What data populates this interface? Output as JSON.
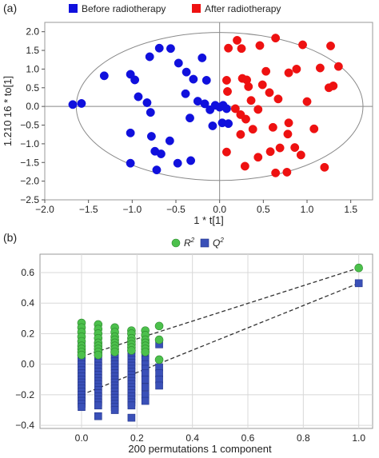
{
  "panels": {
    "a": "(a)",
    "b": "(b)"
  },
  "colors": {
    "before": "#1010dd",
    "after": "#ee1111",
    "r2": "#4cc04c",
    "q2": "#3a50b8",
    "grid": "#d8d8d8",
    "axis_bg": "#ffffff",
    "frame": "#999999"
  },
  "chart_data": [
    {
      "type": "scatter",
      "panel": "a",
      "xlabel": "1 * t[1]",
      "ylabel": "1.210 16 * to[1]",
      "xlim": [
        -2.0,
        1.75
      ],
      "ylim": [
        -2.5,
        2.25
      ],
      "xticks": [
        -2.0,
        -1.5,
        -1.0,
        -0.5,
        0.0,
        0.5,
        1.0,
        1.5
      ],
      "xtick_labels": [
        "−2.0",
        "−1.5",
        "−1.0",
        "−0.5",
        "0.0",
        "0.5",
        "1.0",
        "1.5"
      ],
      "yticks": [
        2.0,
        1.5,
        1.0,
        0.5,
        0.0,
        -0.5,
        -1.0,
        -1.5,
        -2.0,
        -2.5
      ],
      "ytick_labels": [
        "2.0",
        "1.5",
        "1.0",
        "0.5",
        "0.0",
        "−0.5",
        "−1.0",
        "−1.5",
        "−2.0",
        "−2.5"
      ],
      "grid": false,
      "legend_position": "top",
      "ellipse": {
        "center": [
          0.0,
          0.0
        ],
        "rx": 1.64,
        "ry": 1.98
      },
      "series": [
        {
          "name": "Before radiotherapy",
          "color_key": "before",
          "points": [
            [
              -1.68,
              0.05
            ],
            [
              -1.32,
              0.82
            ],
            [
              -1.02,
              0.86
            ],
            [
              -0.97,
              0.71
            ],
            [
              -0.8,
              1.33
            ],
            [
              -0.69,
              1.56
            ],
            [
              -0.56,
              1.55
            ],
            [
              -0.47,
              1.16
            ],
            [
              -0.38,
              0.92
            ],
            [
              -0.3,
              0.73
            ],
            [
              -0.2,
              1.3
            ],
            [
              -0.15,
              0.7
            ],
            [
              -0.39,
              0.34
            ],
            [
              -0.25,
              0.14
            ],
            [
              -0.17,
              0.07
            ],
            [
              -0.11,
              -0.09
            ],
            [
              -0.05,
              0.03
            ],
            [
              0.0,
              -0.02
            ],
            [
              0.04,
              0.03
            ],
            [
              0.08,
              -0.06
            ],
            [
              0.03,
              -0.44
            ],
            [
              -0.08,
              -0.52
            ],
            [
              0.1,
              -0.46
            ],
            [
              -0.34,
              -0.31
            ],
            [
              -0.83,
              0.1
            ],
            [
              -0.79,
              -0.16
            ],
            [
              -1.02,
              -0.71
            ],
            [
              -0.78,
              -0.8
            ],
            [
              -0.57,
              -0.92
            ],
            [
              -0.74,
              -1.2
            ],
            [
              -0.67,
              -1.27
            ],
            [
              -1.02,
              -1.52
            ],
            [
              -0.72,
              -1.7
            ],
            [
              -0.48,
              -1.52
            ],
            [
              -0.33,
              -1.45
            ],
            [
              -0.93,
              0.26
            ],
            [
              -1.58,
              0.08
            ]
          ]
        },
        {
          "name": "After radiotherapy",
          "color_key": "after",
          "points": [
            [
              0.1,
              1.56
            ],
            [
              0.2,
              1.77
            ],
            [
              0.25,
              1.55
            ],
            [
              0.46,
              1.63
            ],
            [
              0.64,
              1.83
            ],
            [
              0.95,
              1.65
            ],
            [
              1.27,
              1.62
            ],
            [
              0.88,
              1.0
            ],
            [
              1.15,
              1.03
            ],
            [
              1.36,
              1.07
            ],
            [
              0.53,
              0.94
            ],
            [
              0.79,
              0.9
            ],
            [
              0.26,
              0.75
            ],
            [
              0.31,
              0.71
            ],
            [
              0.08,
              0.7
            ],
            [
              0.49,
              0.58
            ],
            [
              0.33,
              0.53
            ],
            [
              0.57,
              0.37
            ],
            [
              0.09,
              0.4
            ],
            [
              1.25,
              0.5
            ],
            [
              1.3,
              0.55
            ],
            [
              1.0,
              0.13
            ],
            [
              0.67,
              0.2
            ],
            [
              0.36,
              0.16
            ],
            [
              0.44,
              -0.08
            ],
            [
              0.3,
              -0.34
            ],
            [
              0.24,
              -0.22
            ],
            [
              0.61,
              -0.56
            ],
            [
              0.79,
              -0.44
            ],
            [
              1.08,
              -0.6
            ],
            [
              0.38,
              -0.61
            ],
            [
              0.24,
              -0.75
            ],
            [
              0.78,
              -0.74
            ],
            [
              0.86,
              -1.1
            ],
            [
              0.69,
              -1.11
            ],
            [
              0.58,
              -1.21
            ],
            [
              0.44,
              -1.36
            ],
            [
              0.29,
              -1.6
            ],
            [
              0.08,
              -1.22
            ],
            [
              0.64,
              -1.78
            ],
            [
              0.77,
              -1.76
            ],
            [
              0.93,
              -1.3
            ],
            [
              1.2,
              -1.63
            ],
            [
              0.18,
              -0.06
            ]
          ]
        }
      ]
    },
    {
      "type": "scatter",
      "panel": "b",
      "xlabel": "200 permutations 1 component",
      "ylabel": "",
      "xlim": [
        -0.15,
        1.05
      ],
      "ylim": [
        -0.42,
        0.72
      ],
      "xticks": [
        0.0,
        0.2,
        0.4,
        0.6,
        0.8,
        1.0
      ],
      "xtick_labels": [
        "0.0",
        "0.2",
        "0.4",
        "0.6",
        "0.8",
        "1.0"
      ],
      "yticks": [
        0.6,
        0.4,
        0.2,
        0.0,
        -0.2,
        -0.4
      ],
      "ytick_labels": [
        "0.6",
        "0.4",
        "0.2",
        "0.0",
        "−0.2",
        "−0.4"
      ],
      "grid": true,
      "legend_position": "top",
      "lines": [
        {
          "series": "R2",
          "from": [
            0.0,
            0.05
          ],
          "to": [
            1.0,
            0.63
          ],
          "style": "dashed"
        },
        {
          "series": "Q2",
          "from": [
            0.0,
            -0.2
          ],
          "to": [
            1.0,
            0.53
          ],
          "style": "dashed"
        }
      ],
      "series": [
        {
          "name": "R",
          "superscript": "2",
          "marker": "circle",
          "color_key": "r2",
          "columns": [
            {
              "x": 0.0,
              "y": [
                0.27,
                0.24,
                0.21,
                0.18,
                0.15,
                0.12,
                0.1,
                0.08,
                0.06
              ]
            },
            {
              "x": 0.06,
              "y": [
                0.26,
                0.23,
                0.2,
                0.17,
                0.14,
                0.12,
                0.1,
                0.08,
                0.06
              ]
            },
            {
              "x": 0.12,
              "y": [
                0.24,
                0.21,
                0.18,
                0.16,
                0.14,
                0.12,
                0.1,
                0.08
              ]
            },
            {
              "x": 0.18,
              "y": [
                0.22,
                0.2,
                0.17,
                0.15,
                0.13,
                0.11,
                0.09
              ]
            },
            {
              "x": 0.23,
              "y": [
                0.22,
                0.19,
                0.16,
                0.14,
                0.12,
                0.1,
                0.08
              ]
            },
            {
              "x": 0.28,
              "y": [
                0.25,
                0.16,
                0.03
              ]
            },
            {
              "x": 1.0,
              "y": [
                0.63
              ]
            }
          ]
        },
        {
          "name": "Q",
          "superscript": "2",
          "marker": "square",
          "color_key": "q2",
          "columns": [
            {
              "x": 0.0,
              "y": [
                0.12,
                0.1,
                0.08,
                0.06,
                0.04,
                0.02,
                0.0,
                -0.02,
                -0.04,
                -0.06,
                -0.08,
                -0.1,
                -0.12,
                -0.14,
                -0.16,
                -0.18,
                -0.2,
                -0.22,
                -0.24,
                -0.26,
                -0.28
              ]
            },
            {
              "x": 0.06,
              "y": [
                0.11,
                0.09,
                0.07,
                0.05,
                0.03,
                0.01,
                -0.01,
                -0.03,
                -0.05,
                -0.07,
                -0.09,
                -0.11,
                -0.13,
                -0.15,
                -0.17,
                -0.19,
                -0.21,
                -0.23,
                -0.25,
                -0.27,
                -0.34
              ]
            },
            {
              "x": 0.12,
              "y": [
                0.1,
                0.08,
                0.06,
                0.04,
                0.02,
                0.0,
                -0.02,
                -0.04,
                -0.06,
                -0.08,
                -0.1,
                -0.12,
                -0.14,
                -0.16,
                -0.18,
                -0.2,
                -0.22,
                -0.24,
                -0.26,
                -0.28,
                -0.3
              ]
            },
            {
              "x": 0.18,
              "y": [
                0.09,
                0.07,
                0.05,
                0.03,
                0.01,
                -0.01,
                -0.03,
                -0.05,
                -0.07,
                -0.09,
                -0.11,
                -0.13,
                -0.15,
                -0.17,
                -0.19,
                -0.21,
                -0.23,
                -0.25,
                -0.27,
                -0.35
              ]
            },
            {
              "x": 0.23,
              "y": [
                0.09,
                0.06,
                0.03,
                0.0,
                -0.03,
                -0.06,
                -0.1,
                -0.15,
                -0.2,
                -0.24
              ]
            },
            {
              "x": 0.28,
              "y": [
                0.13,
                -0.02,
                -0.06,
                -0.1,
                -0.14
              ]
            },
            {
              "x": 1.0,
              "y": [
                0.53
              ]
            }
          ]
        }
      ]
    }
  ]
}
